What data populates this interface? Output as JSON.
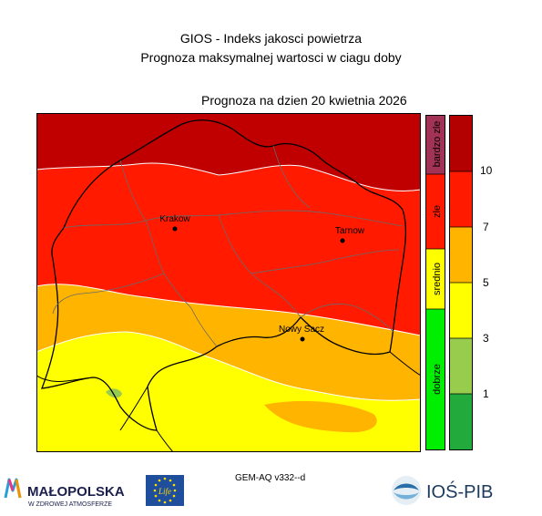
{
  "header": {
    "line1": "GIOS - Indeks jakosci powietrza",
    "line2": "Prognoza maksymalnej wartosci w ciagu doby"
  },
  "forecast_date": "Prognoza na dzien  20 kwietnia 2026",
  "cities": [
    {
      "name": "Krakow"
    },
    {
      "name": "Tarnow"
    },
    {
      "name": "Nowy Sacz"
    }
  ],
  "categories": [
    {
      "label": "bardzo zle",
      "color": "#a33356"
    },
    {
      "label": "zle",
      "color": "#ff1a00"
    },
    {
      "label": "srednio",
      "color": "#ffff00"
    },
    {
      "label": "dobrze",
      "color": "#00ee00"
    }
  ],
  "scale": {
    "colors": [
      "#b30000",
      "#ff1a00",
      "#ffb400",
      "#ffff00",
      "#98cc4c",
      "#22aa3c"
    ],
    "labels": [
      "10",
      "7",
      "5",
      "3",
      "1"
    ]
  },
  "footer": {
    "model": "GEM-AQ v332--d",
    "logo_malopolska": "MAŁOPOLSKA",
    "logo_malopolska_sub": "W ZDROWEJ ATMOSFERZE",
    "logo_eu": "Life",
    "logo_ios": "IOŚ-PIB"
  }
}
